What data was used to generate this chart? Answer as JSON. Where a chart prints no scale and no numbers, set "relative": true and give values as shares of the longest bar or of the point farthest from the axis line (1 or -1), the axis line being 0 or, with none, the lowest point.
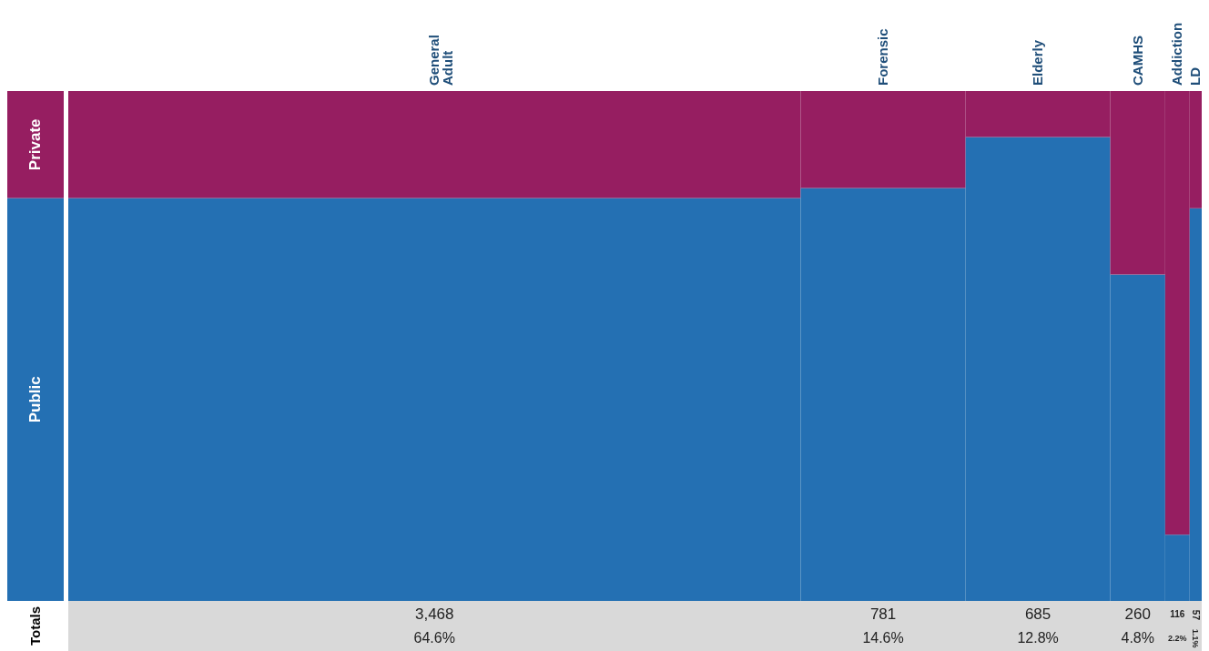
{
  "chart_data": {
    "type": "bar",
    "stacked": true,
    "relative": true,
    "categories": [
      "General Adult",
      "Forensic",
      "Elderly",
      "CAMHS",
      "Addiction",
      "LD"
    ],
    "series": [
      {
        "name": "Public",
        "color": "#2470b3",
        "values": [
          0.79,
          0.81,
          0.91,
          0.64,
          0.13,
          0.77
        ]
      },
      {
        "name": "Private",
        "color": "#961e61",
        "values": [
          0.21,
          0.19,
          0.09,
          0.36,
          0.87,
          0.23
        ]
      }
    ],
    "annotations": [
      "Totals",
      "3,468",
      "781",
      "685",
      "260",
      "116",
      "57",
      "64.6%",
      "14.6%",
      "12.8%",
      "4.8%",
      "2.2%",
      "1.1%"
    ]
  }
}
